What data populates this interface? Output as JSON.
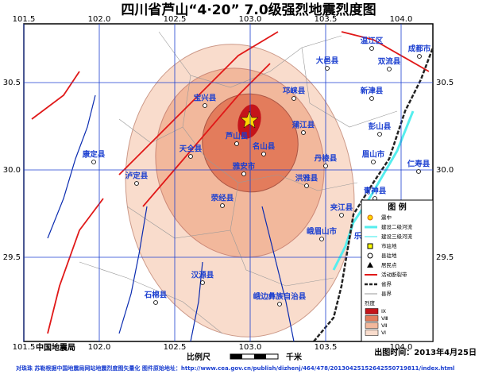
{
  "title": "四川省芦山“4·20” 7.0级强烈地震烈度图",
  "lon_ticks": [
    101.5,
    {
      "value": 102,
      "label": "102.0"
    },
    102.5,
    {
      "value": 103,
      "label": "103.0"
    },
    103.5,
    {
      "value": 104,
      "label": "104.0"
    }
  ],
  "lat_ticks": [
    30.5,
    {
      "value": 30,
      "label": "30.0"
    },
    29.5
  ],
  "places": [
    "宝兴县",
    "芦山县",
    "天全县",
    "名山县",
    "雅安市",
    "邛崃县",
    "蒲江县",
    "丹棱县",
    "洪雅县",
    "荥经县",
    "康定县",
    "泸定县",
    "汉源县",
    "石棉县",
    "峨边彝族自治县",
    "峨眉山市",
    "夹江县",
    "乐山市",
    "青神县",
    "眉山市",
    "彭山县",
    "新津县",
    "大邑县",
    "温江区",
    "双流县",
    "成都市",
    "仁寿县",
    "犍为县"
  ],
  "legend": {
    "title": "图 例",
    "items": [
      "震中",
      "建设二级河流",
      "建设三级河流",
      "市驻地",
      "县驻地",
      "居民点",
      "活动断裂带",
      "省界",
      "县界",
      "烈度"
    ],
    "intensity": [
      "Ⅸ",
      "Ⅷ",
      "Ⅶ",
      "Ⅵ"
    ]
  },
  "footer": {
    "agency": "中国地震局",
    "scale": "比例尺",
    "unit": "千米",
    "date": "出图时间：2013年4月25日",
    "credit": "对珠珠 苏勒根据中国地震局网站地震烈度图矢量化  图件原始地址：http://www.cea.gov.cn/publish/dizhenj/464/478/20130425152642550719811/index.html"
  }
}
